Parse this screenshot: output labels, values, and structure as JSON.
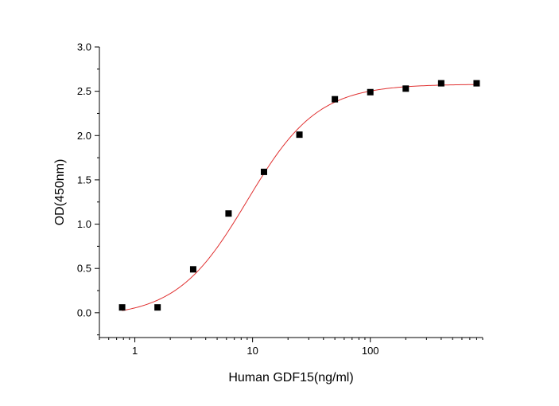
{
  "chart_data": {
    "type": "scatter",
    "x_scale": "log",
    "xlabel": "Human GDF15(ng/ml)",
    "ylabel": "OD(450nm)",
    "xlim": [
      0.5,
      900
    ],
    "ylim": [
      -0.28,
      3.0
    ],
    "x_ticks": [
      1,
      10,
      100
    ],
    "x_tick_labels": [
      "1",
      "10",
      "100"
    ],
    "y_ticks": [
      0.0,
      0.5,
      1.0,
      1.5,
      2.0,
      2.5,
      3.0
    ],
    "y_tick_labels": [
      "0.0",
      "0.5",
      "1.0",
      "1.5",
      "2.0",
      "2.5",
      "3.0"
    ],
    "grid": false,
    "marker_color": "#000000",
    "fit_color": "#e03030",
    "points": [
      {
        "x": 0.78,
        "y": 0.06
      },
      {
        "x": 1.56,
        "y": 0.06
      },
      {
        "x": 3.13,
        "y": 0.49
      },
      {
        "x": 6.25,
        "y": 1.12
      },
      {
        "x": 12.5,
        "y": 1.59
      },
      {
        "x": 25,
        "y": 2.01
      },
      {
        "x": 50,
        "y": 2.41
      },
      {
        "x": 100,
        "y": 2.49
      },
      {
        "x": 200,
        "y": 2.53
      },
      {
        "x": 400,
        "y": 2.59
      },
      {
        "x": 800,
        "y": 2.59
      }
    ],
    "fit": {
      "model": "4PL",
      "bottom": -0.05,
      "top": 2.58,
      "ec50": 9.0,
      "hill": 1.45
    }
  }
}
